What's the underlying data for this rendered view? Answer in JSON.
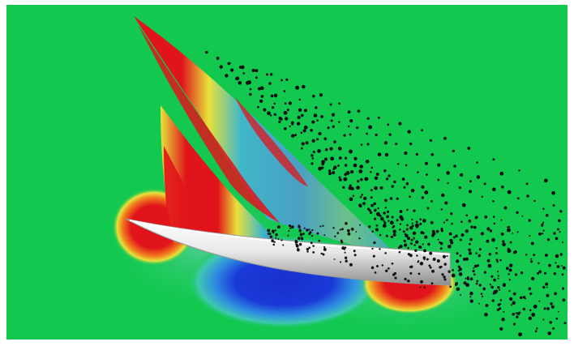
{
  "image": {
    "subject": "cfd-sailboat-pressure-field",
    "colors": {
      "border": "#ffffff",
      "background_green": "#12c84f",
      "high_red": "#e0141a",
      "mid_orange": "#f07a1e",
      "mid_yellow": "#e8e23a",
      "mid_cyan": "#3fb7c8",
      "low_blue": "#1a2fd0",
      "hull_white": "#f4f4f4",
      "hull_grey": "#9a9a9a",
      "particles": "#111111"
    }
  }
}
